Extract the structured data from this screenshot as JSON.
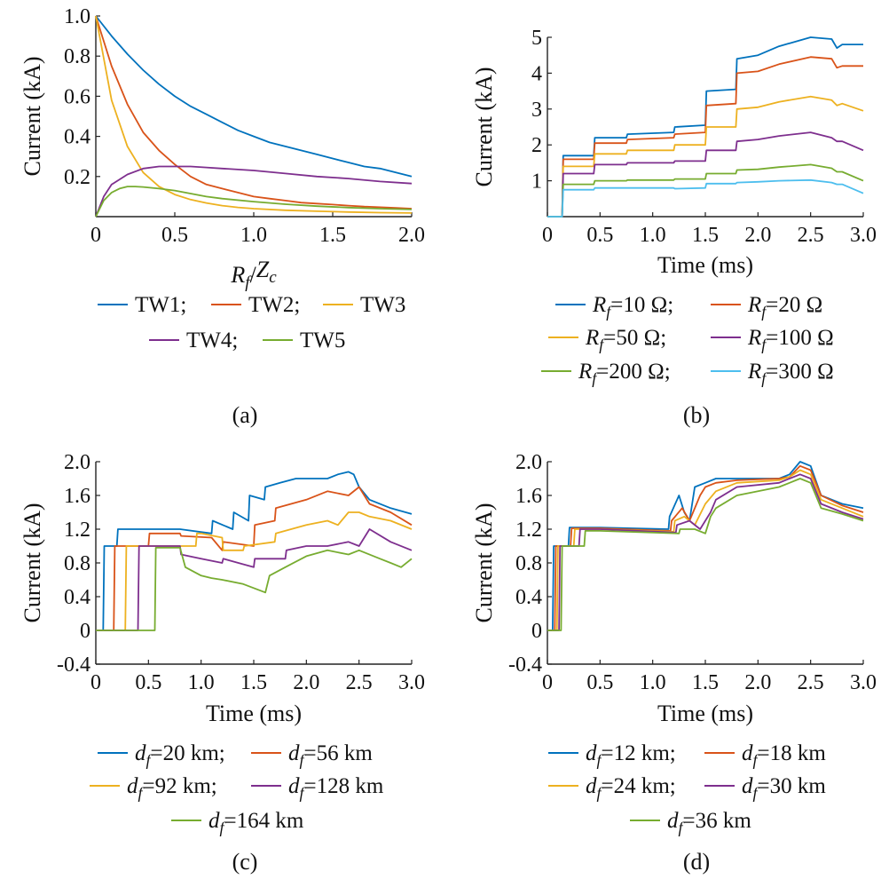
{
  "colors": [
    "#0072BD",
    "#D95319",
    "#EDB120",
    "#7E2F8E",
    "#77AC30",
    "#4DBEEE"
  ],
  "chart_data": [
    {
      "panel": "a",
      "type": "line",
      "caption": "(a)",
      "xlabel": "Rf/Zc",
      "ylabel": "Current (kA)",
      "xlim": [
        0,
        2.0
      ],
      "ylim": [
        0,
        1.0
      ],
      "xticks": [
        "0",
        "0.5",
        "1.0",
        "1.5",
        "2.0"
      ],
      "yticks": [
        "0.2",
        "0.4",
        "0.6",
        "0.8",
        "1.0"
      ],
      "series": [
        {
          "name": "TW1",
          "x": [
            0,
            0.1,
            0.2,
            0.3,
            0.4,
            0.5,
            0.6,
            0.7,
            0.8,
            0.9,
            1.0,
            1.1,
            1.2,
            1.3,
            1.4,
            1.5,
            1.6,
            1.7,
            1.8,
            1.9,
            2.0
          ],
          "values": [
            1.0,
            0.9,
            0.81,
            0.73,
            0.66,
            0.6,
            0.55,
            0.51,
            0.47,
            0.43,
            0.4,
            0.37,
            0.35,
            0.33,
            0.31,
            0.29,
            0.27,
            0.25,
            0.24,
            0.22,
            0.2
          ]
        },
        {
          "name": "TW2",
          "x": [
            0,
            0.1,
            0.2,
            0.3,
            0.4,
            0.5,
            0.6,
            0.7,
            0.8,
            0.9,
            1.0,
            1.1,
            1.2,
            1.3,
            1.4,
            1.5,
            1.6,
            1.7,
            1.8,
            1.9,
            2.0
          ],
          "values": [
            1.0,
            0.75,
            0.56,
            0.42,
            0.33,
            0.26,
            0.2,
            0.16,
            0.14,
            0.12,
            0.1,
            0.09,
            0.08,
            0.07,
            0.065,
            0.06,
            0.055,
            0.05,
            0.047,
            0.044,
            0.04
          ]
        },
        {
          "name": "TW3",
          "x": [
            0,
            0.1,
            0.2,
            0.3,
            0.4,
            0.5,
            0.6,
            0.7,
            0.8,
            0.9,
            1.0,
            1.2,
            1.4,
            1.6,
            1.8,
            2.0
          ],
          "values": [
            1.0,
            0.58,
            0.35,
            0.22,
            0.15,
            0.11,
            0.085,
            0.068,
            0.055,
            0.046,
            0.04,
            0.032,
            0.027,
            0.023,
            0.02,
            0.018
          ]
        },
        {
          "name": "TW4",
          "x": [
            0,
            0.05,
            0.1,
            0.2,
            0.3,
            0.4,
            0.5,
            0.6,
            0.7,
            0.8,
            0.9,
            1.0,
            1.2,
            1.4,
            1.6,
            1.8,
            2.0
          ],
          "values": [
            0,
            0.1,
            0.16,
            0.21,
            0.24,
            0.25,
            0.25,
            0.25,
            0.245,
            0.24,
            0.235,
            0.23,
            0.215,
            0.2,
            0.19,
            0.175,
            0.165
          ]
        },
        {
          "name": "TW5",
          "x": [
            0,
            0.05,
            0.1,
            0.15,
            0.2,
            0.25,
            0.3,
            0.4,
            0.5,
            0.6,
            0.7,
            0.8,
            1.0,
            1.2,
            1.4,
            1.6,
            1.8,
            2.0
          ],
          "values": [
            0,
            0.08,
            0.12,
            0.14,
            0.15,
            0.15,
            0.148,
            0.14,
            0.13,
            0.115,
            0.1,
            0.09,
            0.075,
            0.062,
            0.052,
            0.045,
            0.04,
            0.036
          ]
        }
      ]
    },
    {
      "panel": "b",
      "type": "line",
      "caption": "(b)",
      "xlabel": "Time (ms)",
      "ylabel": "Current (kA)",
      "xlim": [
        0,
        3.0
      ],
      "ylim": [
        0,
        5
      ],
      "xticks": [
        "0",
        "0.5",
        "1.0",
        "1.5",
        "2.0",
        "2.5",
        "3.0"
      ],
      "yticks": [
        "1",
        "2",
        "3",
        "4",
        "5"
      ],
      "series": [
        {
          "name": "Rf=10 Ω",
          "x": [
            0,
            0.14,
            0.15,
            0.44,
            0.45,
            0.75,
            0.76,
            1.2,
            1.21,
            1.5,
            1.51,
            1.79,
            1.8,
            2.0,
            2.2,
            2.5,
            2.7,
            2.75,
            2.8,
            3.0
          ],
          "values": [
            0,
            0,
            1.7,
            1.7,
            2.2,
            2.2,
            2.3,
            2.35,
            2.5,
            2.55,
            3.5,
            3.55,
            4.4,
            4.5,
            4.75,
            5.0,
            4.95,
            4.7,
            4.8,
            4.8
          ]
        },
        {
          "name": "Rf=20 Ω",
          "x": [
            0,
            0.14,
            0.15,
            0.44,
            0.45,
            0.75,
            0.76,
            1.2,
            1.21,
            1.5,
            1.51,
            1.79,
            1.8,
            2.0,
            2.2,
            2.5,
            2.7,
            2.75,
            2.8,
            3.0
          ],
          "values": [
            0,
            0,
            1.6,
            1.6,
            2.05,
            2.05,
            2.15,
            2.2,
            2.3,
            2.35,
            3.1,
            3.15,
            4.0,
            4.05,
            4.25,
            4.45,
            4.4,
            4.15,
            4.2,
            4.2
          ]
        },
        {
          "name": "Rf=50 Ω",
          "x": [
            0,
            0.14,
            0.15,
            0.44,
            0.45,
            0.75,
            0.76,
            1.2,
            1.21,
            1.5,
            1.51,
            1.79,
            1.8,
            2.0,
            2.2,
            2.5,
            2.7,
            2.75,
            2.8,
            3.0
          ],
          "values": [
            0,
            0,
            1.4,
            1.4,
            1.75,
            1.75,
            1.85,
            1.85,
            2.0,
            2.0,
            2.5,
            2.5,
            3.0,
            3.05,
            3.2,
            3.35,
            3.25,
            3.1,
            3.15,
            2.95
          ]
        },
        {
          "name": "Rf=100 Ω",
          "x": [
            0,
            0.14,
            0.15,
            0.44,
            0.45,
            0.75,
            0.76,
            1.2,
            1.21,
            1.5,
            1.51,
            1.79,
            1.8,
            2.0,
            2.2,
            2.5,
            2.7,
            2.75,
            2.8,
            3.0
          ],
          "values": [
            0,
            0,
            1.2,
            1.2,
            1.45,
            1.45,
            1.5,
            1.5,
            1.55,
            1.55,
            1.85,
            1.85,
            2.1,
            2.15,
            2.25,
            2.35,
            2.2,
            2.1,
            2.1,
            1.85
          ]
        },
        {
          "name": "Rf=200 Ω",
          "x": [
            0,
            0.14,
            0.15,
            0.44,
            0.45,
            0.75,
            0.76,
            1.2,
            1.21,
            1.5,
            1.51,
            1.79,
            1.8,
            2.0,
            2.2,
            2.5,
            2.7,
            2.75,
            2.8,
            3.0
          ],
          "values": [
            0,
            0,
            0.9,
            0.9,
            1.0,
            1.0,
            1.02,
            1.02,
            1.05,
            1.05,
            1.2,
            1.2,
            1.3,
            1.32,
            1.38,
            1.45,
            1.35,
            1.25,
            1.25,
            1.0
          ]
        },
        {
          "name": "Rf=300 Ω",
          "x": [
            0,
            0.14,
            0.15,
            0.44,
            0.45,
            0.75,
            0.76,
            1.2,
            1.21,
            1.5,
            1.51,
            1.79,
            1.8,
            2.0,
            2.2,
            2.5,
            2.7,
            2.75,
            2.8,
            3.0
          ],
          "values": [
            0,
            0,
            0.75,
            0.75,
            0.8,
            0.8,
            0.8,
            0.8,
            0.78,
            0.8,
            0.92,
            0.92,
            0.95,
            0.97,
            1.0,
            1.02,
            0.95,
            0.9,
            0.9,
            0.65
          ]
        }
      ]
    },
    {
      "panel": "c",
      "type": "line",
      "caption": "(c)",
      "xlabel": "Time (ms)",
      "ylabel": "Current (kA)",
      "xlim": [
        0,
        3.0
      ],
      "ylim": [
        -0.4,
        2.0
      ],
      "xticks": [
        "0",
        "0.5",
        "1.0",
        "1.5",
        "2.0",
        "2.5",
        "3.0"
      ],
      "yticks": [
        "-0.4",
        "0",
        "0.4",
        "0.8",
        "1.2",
        "1.6",
        "2.0"
      ],
      "series": [
        {
          "name": "df=20 km",
          "x": [
            0,
            0.07,
            0.08,
            0.2,
            0.21,
            0.6,
            0.8,
            1.1,
            1.11,
            1.3,
            1.31,
            1.45,
            1.46,
            1.6,
            1.61,
            1.75,
            1.9,
            2.2,
            2.3,
            2.4,
            2.45,
            2.5,
            2.6,
            2.8,
            3.0
          ],
          "values": [
            0,
            0,
            1.0,
            1.0,
            1.2,
            1.2,
            1.2,
            1.15,
            1.3,
            1.2,
            1.4,
            1.3,
            1.6,
            1.55,
            1.7,
            1.75,
            1.8,
            1.8,
            1.85,
            1.88,
            1.85,
            1.7,
            1.55,
            1.45,
            1.38
          ]
        },
        {
          "name": "df=56 km",
          "x": [
            0,
            0.17,
            0.18,
            0.5,
            0.51,
            0.8,
            0.81,
            1.1,
            1.2,
            1.21,
            1.5,
            1.51,
            1.7,
            1.71,
            2.0,
            2.2,
            2.4,
            2.5,
            2.6,
            2.8,
            3.0
          ],
          "values": [
            0,
            0,
            1.0,
            1.0,
            1.15,
            1.15,
            1.12,
            1.1,
            0.95,
            1.05,
            1.0,
            1.25,
            1.3,
            1.45,
            1.55,
            1.65,
            1.6,
            1.7,
            1.5,
            1.4,
            1.25
          ]
        },
        {
          "name": "df=92 km",
          "x": [
            0,
            0.28,
            0.29,
            0.6,
            0.7,
            0.95,
            0.96,
            1.0,
            1.2,
            1.21,
            1.4,
            1.41,
            1.7,
            1.71,
            2.0,
            2.2,
            2.3,
            2.4,
            2.5,
            2.6,
            2.8,
            3.0
          ],
          "values": [
            0,
            0,
            1.0,
            1.0,
            1.0,
            1.0,
            1.15,
            1.15,
            1.1,
            0.95,
            0.95,
            1.0,
            1.05,
            1.15,
            1.25,
            1.3,
            1.25,
            1.4,
            1.4,
            1.35,
            1.3,
            1.2
          ]
        },
        {
          "name": "df=128 km",
          "x": [
            0,
            0.4,
            0.41,
            0.8,
            0.81,
            1.0,
            1.2,
            1.21,
            1.5,
            1.51,
            1.8,
            1.81,
            2.0,
            2.2,
            2.4,
            2.5,
            2.6,
            2.8,
            3.0
          ],
          "values": [
            0,
            0,
            1.0,
            1.0,
            0.9,
            0.85,
            0.8,
            0.85,
            0.75,
            0.85,
            0.85,
            0.95,
            1.0,
            1.0,
            1.05,
            1.0,
            1.2,
            1.05,
            0.95
          ]
        },
        {
          "name": "df=164 km",
          "x": [
            0,
            0.56,
            0.57,
            0.8,
            0.85,
            1.0,
            1.1,
            1.2,
            1.4,
            1.61,
            1.65,
            1.8,
            2.0,
            2.2,
            2.4,
            2.5,
            2.7,
            2.8,
            2.9,
            3.0
          ],
          "values": [
            0,
            0,
            0.98,
            0.98,
            0.75,
            0.65,
            0.62,
            0.6,
            0.55,
            0.45,
            0.65,
            0.75,
            0.88,
            0.95,
            0.9,
            0.95,
            0.85,
            0.8,
            0.75,
            0.85
          ]
        }
      ]
    },
    {
      "panel": "d",
      "type": "line",
      "caption": "(d)",
      "xlabel": "Time (ms)",
      "ylabel": "Current (kA)",
      "xlim": [
        0,
        3.0
      ],
      "ylim": [
        -0.4,
        2.0
      ],
      "xticks": [
        "0",
        "0.5",
        "1.0",
        "1.5",
        "2.0",
        "2.5",
        "3.0"
      ],
      "yticks": [
        "-0.4",
        "0",
        "0.4",
        "0.8",
        "1.2",
        "1.6",
        "2.0"
      ],
      "series": [
        {
          "name": "df=12 km",
          "x": [
            0,
            0.05,
            0.06,
            0.2,
            0.21,
            0.5,
            1.15,
            1.16,
            1.25,
            1.3,
            1.35,
            1.4,
            1.5,
            1.6,
            1.8,
            2.2,
            2.3,
            2.4,
            2.5,
            2.6,
            2.8,
            3.0
          ],
          "values": [
            0,
            0,
            1.0,
            1.0,
            1.22,
            1.22,
            1.2,
            1.35,
            1.6,
            1.4,
            1.3,
            1.7,
            1.75,
            1.8,
            1.8,
            1.8,
            1.85,
            2.0,
            1.95,
            1.6,
            1.5,
            1.45
          ]
        },
        {
          "name": "df=18 km",
          "x": [
            0,
            0.07,
            0.08,
            0.22,
            0.23,
            0.5,
            1.17,
            1.18,
            1.28,
            1.35,
            1.45,
            1.5,
            1.6,
            1.8,
            2.2,
            2.3,
            2.4,
            2.5,
            2.6,
            2.8,
            3.0
          ],
          "values": [
            0,
            0,
            1.0,
            1.0,
            1.21,
            1.21,
            1.18,
            1.3,
            1.45,
            1.3,
            1.6,
            1.7,
            1.75,
            1.78,
            1.8,
            1.82,
            1.95,
            1.9,
            1.6,
            1.48,
            1.4
          ]
        },
        {
          "name": "df=24 km",
          "x": [
            0,
            0.09,
            0.1,
            0.25,
            0.26,
            0.5,
            1.2,
            1.21,
            1.3,
            1.4,
            1.5,
            1.6,
            1.8,
            2.2,
            2.3,
            2.4,
            2.5,
            2.6,
            2.8,
            3.0
          ],
          "values": [
            0,
            0,
            1.0,
            1.0,
            1.2,
            1.2,
            1.17,
            1.3,
            1.35,
            1.25,
            1.5,
            1.65,
            1.75,
            1.78,
            1.82,
            1.9,
            1.85,
            1.55,
            1.45,
            1.35
          ]
        },
        {
          "name": "df=30 km",
          "x": [
            0,
            0.11,
            0.12,
            0.3,
            0.31,
            0.5,
            1.22,
            1.23,
            1.35,
            1.45,
            1.55,
            1.6,
            1.8,
            2.2,
            2.3,
            2.4,
            2.5,
            2.6,
            2.8,
            3.0
          ],
          "values": [
            0,
            0,
            1.0,
            1.0,
            1.2,
            1.2,
            1.16,
            1.25,
            1.3,
            1.2,
            1.4,
            1.55,
            1.7,
            1.75,
            1.8,
            1.85,
            1.8,
            1.5,
            1.4,
            1.32
          ]
        },
        {
          "name": "df=36 km",
          "x": [
            0,
            0.13,
            0.14,
            0.35,
            0.36,
            0.5,
            1.25,
            1.26,
            1.4,
            1.5,
            1.55,
            1.6,
            1.8,
            2.2,
            2.3,
            2.4,
            2.5,
            2.6,
            2.8,
            3.0
          ],
          "values": [
            0,
            0,
            1.0,
            1.0,
            1.18,
            1.18,
            1.15,
            1.2,
            1.2,
            1.15,
            1.35,
            1.45,
            1.6,
            1.7,
            1.75,
            1.8,
            1.75,
            1.45,
            1.38,
            1.3
          ]
        }
      ]
    }
  ],
  "legends": {
    "a": [
      [
        "TW1;",
        "TW2;",
        "TW3"
      ],
      [
        "TW4;",
        "TW5"
      ]
    ],
    "b": [
      [
        "=10 Ω;",
        "=20 Ω"
      ],
      [
        "=50 Ω;",
        "=100 Ω"
      ],
      [
        "=200 Ω;",
        "=300 Ω"
      ]
    ],
    "c": [
      [
        "=20 km;",
        "=56 km"
      ],
      [
        "=92 km;",
        "=128 km"
      ],
      [
        "=164 km"
      ]
    ],
    "d": [
      [
        "=12 km;",
        "=18 km"
      ],
      [
        "=24 km;",
        "=30 km"
      ],
      [
        "=36 km"
      ]
    ]
  }
}
